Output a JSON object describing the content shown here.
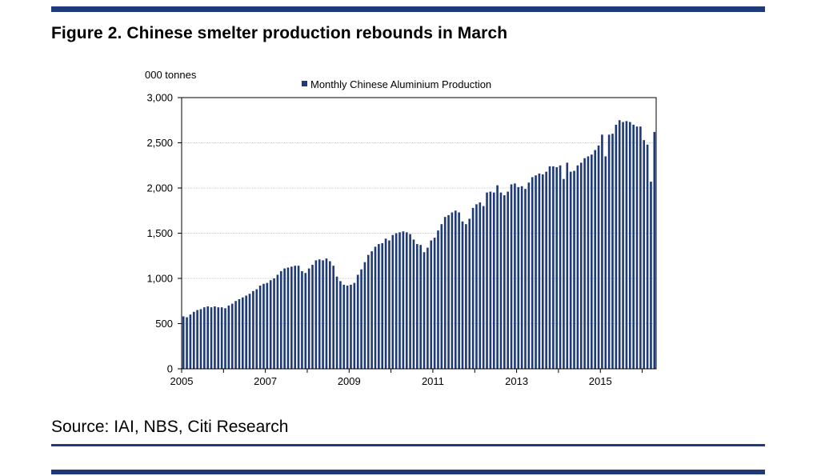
{
  "figure": {
    "title": "Figure 2. Chinese smelter production rebounds in March",
    "source": "Source: IAI, NBS, Citi Research"
  },
  "colors": {
    "bar": "#1f3a78",
    "rule": "#1f3a78",
    "grid": "#c8c8c8"
  },
  "chart_data": {
    "type": "bar",
    "title": "",
    "ylabel": "000 tonnes",
    "xlabel": "",
    "ylim": [
      0,
      3000
    ],
    "yticks": [
      0,
      500,
      1000,
      1500,
      2000,
      2500,
      3000
    ],
    "ytick_labels": [
      "0",
      "500",
      "1,000",
      "1,500",
      "2,000",
      "2,500",
      "3,000"
    ],
    "xtick_years": [
      "2005",
      "2007",
      "2009",
      "2011",
      "2013",
      "2015"
    ],
    "legend": {
      "label": "Monthly Chinese Aluminium Production",
      "placement": "top-center"
    },
    "grid": true,
    "start": "2005-01",
    "series": [
      {
        "name": "Monthly Chinese Aluminium Production",
        "values": [
          580,
          570,
          600,
          630,
          650,
          660,
          680,
          690,
          680,
          690,
          680,
          680,
          670,
          700,
          720,
          750,
          770,
          790,
          810,
          830,
          860,
          880,
          920,
          940,
          950,
          980,
          1000,
          1040,
          1080,
          1110,
          1120,
          1130,
          1140,
          1140,
          1080,
          1060,
          1110,
          1150,
          1200,
          1210,
          1200,
          1220,
          1190,
          1140,
          1020,
          970,
          930,
          920,
          930,
          950,
          1040,
          1100,
          1180,
          1260,
          1300,
          1350,
          1380,
          1390,
          1440,
          1420,
          1480,
          1500,
          1510,
          1520,
          1510,
          1490,
          1430,
          1380,
          1370,
          1290,
          1340,
          1420,
          1450,
          1530,
          1600,
          1680,
          1700,
          1730,
          1750,
          1730,
          1630,
          1600,
          1660,
          1780,
          1820,
          1840,
          1800,
          1950,
          1960,
          1950,
          2030,
          1950,
          1920,
          1960,
          2040,
          2050,
          2010,
          2020,
          1990,
          2060,
          2120,
          2140,
          2160,
          2150,
          2180,
          2240,
          2240,
          2230,
          2250,
          2100,
          2280,
          2180,
          2190,
          2250,
          2280,
          2330,
          2350,
          2370,
          2420,
          2470,
          2590,
          2350,
          2590,
          2600,
          2700,
          2750,
          2730,
          2740,
          2730,
          2700,
          2680,
          2680,
          2530,
          2480,
          2070,
          2620
        ]
      }
    ]
  }
}
